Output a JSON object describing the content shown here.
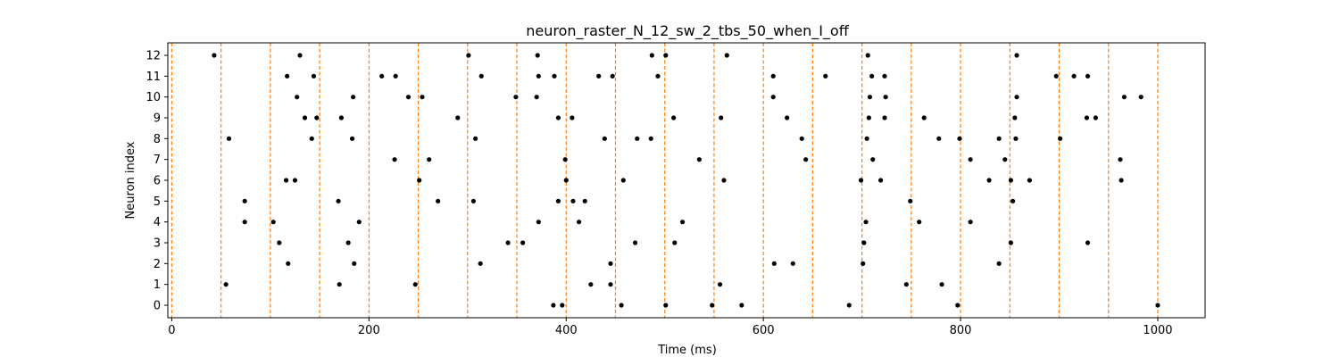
{
  "chart_data": {
    "type": "scatter",
    "title": "neuron_raster_N_12_sw_2_tbs_50_when_I_off",
    "xlabel": "Time (ms)",
    "ylabel": "Neuron index",
    "xlim": [
      -4,
      1048
    ],
    "ylim": [
      -0.6,
      12.6
    ],
    "xticks": [
      0,
      200,
      400,
      600,
      800,
      1000
    ],
    "yticks": [
      0,
      1,
      2,
      3,
      4,
      5,
      6,
      7,
      8,
      9,
      10,
      11,
      12
    ],
    "grid": false,
    "vlines": {
      "positions": [
        0,
        50,
        100,
        150,
        200,
        250,
        300,
        350,
        400,
        450,
        500,
        550,
        600,
        650,
        700,
        750,
        800,
        850,
        900,
        950,
        1000
      ],
      "color": "#ff7f0e",
      "style": "dashed"
    },
    "marker_color": "#000000",
    "series": [
      {
        "neuron": 12,
        "times": [
          43,
          130,
          301,
          371,
          487,
          501,
          563,
          706,
          857
        ]
      },
      {
        "neuron": 11,
        "times": [
          117,
          144,
          213,
          227,
          314,
          372,
          388,
          433,
          447,
          493,
          610,
          663,
          710,
          723,
          897,
          915,
          929
        ]
      },
      {
        "neuron": 10,
        "times": [
          127,
          184,
          240,
          254,
          349,
          370,
          610,
          708,
          724,
          857,
          966,
          983
        ]
      },
      {
        "neuron": 9,
        "times": [
          135,
          147,
          172,
          290,
          392,
          406,
          509,
          557,
          624,
          707,
          723,
          763,
          855,
          928,
          937
        ]
      },
      {
        "neuron": 8,
        "times": [
          58,
          142,
          183,
          308,
          439,
          472,
          486,
          639,
          705,
          778,
          799,
          839,
          856,
          901
        ]
      },
      {
        "neuron": 7,
        "times": [
          226,
          261,
          399,
          535,
          643,
          711,
          810,
          845,
          962
        ]
      },
      {
        "neuron": 6,
        "times": [
          116,
          125,
          251,
          400,
          458,
          560,
          699,
          719,
          829,
          851,
          870,
          963
        ]
      },
      {
        "neuron": 5,
        "times": [
          74,
          169,
          270,
          306,
          392,
          407,
          419,
          749,
          853
        ]
      },
      {
        "neuron": 4,
        "times": [
          74,
          103,
          190,
          372,
          413,
          518,
          704,
          758,
          810
        ]
      },
      {
        "neuron": 3,
        "times": [
          109,
          179,
          341,
          356,
          470,
          510,
          702,
          851,
          929
        ]
      },
      {
        "neuron": 2,
        "times": [
          118,
          185,
          313,
          445,
          611,
          630,
          701,
          839
        ]
      },
      {
        "neuron": 1,
        "times": [
          55,
          170,
          247,
          425,
          445,
          556,
          745,
          781
        ]
      },
      {
        "neuron": 0,
        "times": [
          387,
          396,
          456,
          501,
          548,
          578,
          687,
          797,
          1000
        ]
      }
    ]
  }
}
